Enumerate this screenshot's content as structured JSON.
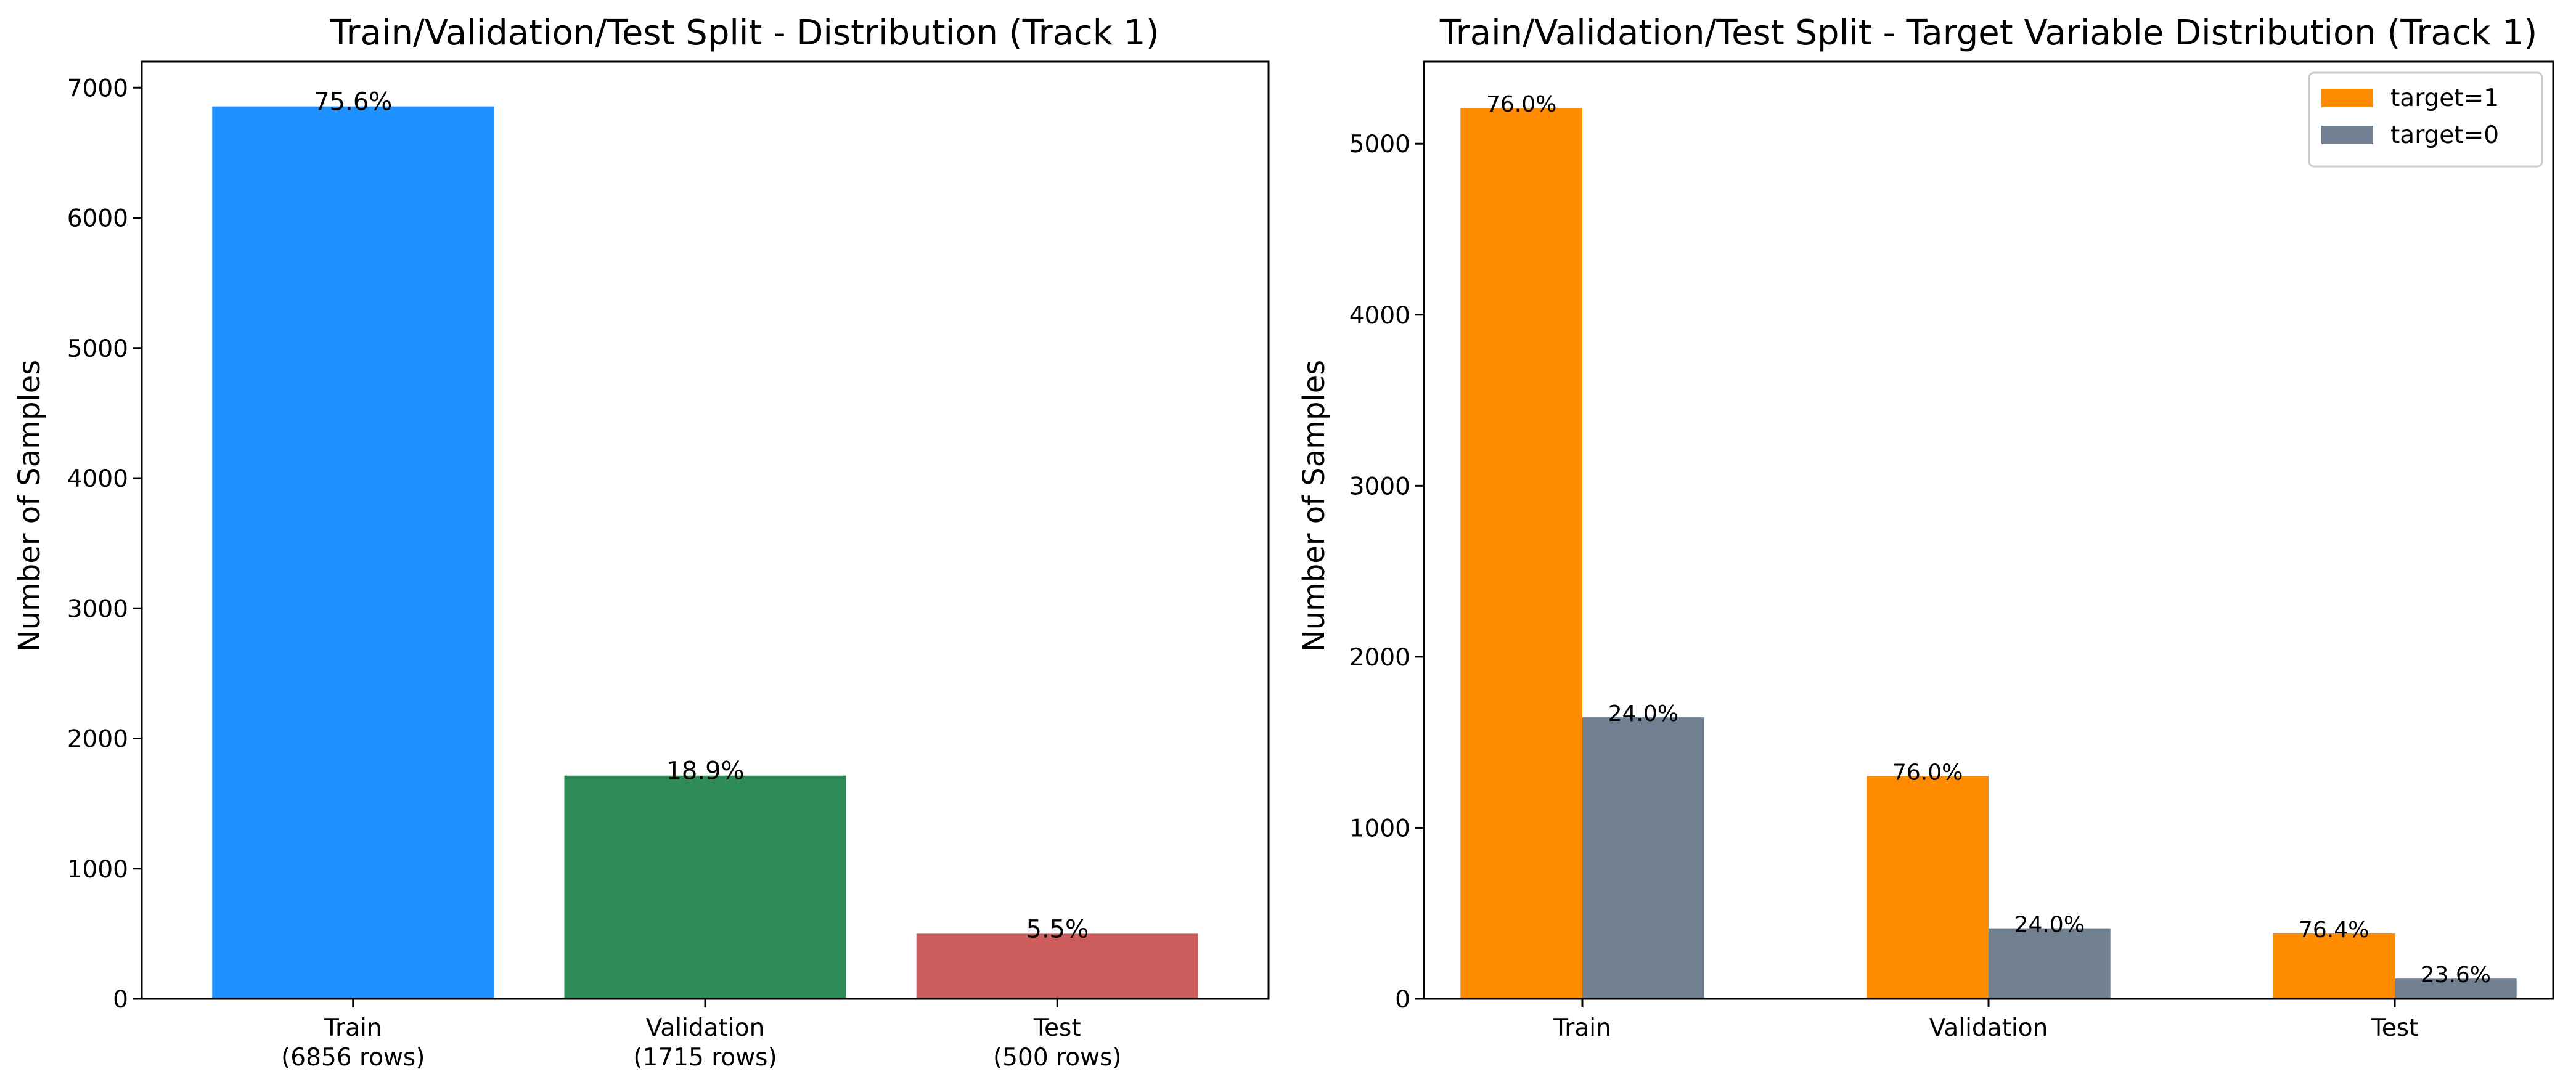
{
  "chart_data": [
    {
      "type": "bar",
      "title": "Train/Validation/Test Split - Distribution (Track 1)",
      "xlabel": "",
      "ylabel": "Number of Samples",
      "ylim": [
        0,
        7200
      ],
      "yticks": [
        0,
        1000,
        2000,
        3000,
        4000,
        5000,
        6000,
        7000
      ],
      "categories": [
        "Train\n(6856 rows)",
        "Validation\n(1715 rows)",
        "Test\n(500 rows)"
      ],
      "values": [
        6856,
        1715,
        500
      ],
      "colors": [
        "#1E90FF",
        "#2E8B57",
        "#CD5C5C"
      ],
      "data_labels": [
        "75.6%",
        "18.9%",
        "5.5%"
      ],
      "grid": false
    },
    {
      "type": "bar",
      "title": "Train/Validation/Test Split - Target Variable Distribution (Track 1)",
      "xlabel": "",
      "ylabel": "Number of Samples",
      "ylim": [
        0,
        5480
      ],
      "yticks": [
        0,
        1000,
        2000,
        3000,
        4000,
        5000
      ],
      "categories": [
        "Train",
        "Validation",
        "Test"
      ],
      "series": [
        {
          "name": "target=1",
          "values": [
            5210,
            1303,
            382
          ],
          "color": "#FF8C00",
          "data_labels": [
            "76.0%",
            "76.0%",
            "76.4%"
          ]
        },
        {
          "name": "target=0",
          "values": [
            1646,
            412,
            118
          ],
          "color": "#708090",
          "data_labels": [
            "24.0%",
            "24.0%",
            "23.6%"
          ]
        }
      ],
      "legend": "top-right",
      "grid": false
    }
  ]
}
